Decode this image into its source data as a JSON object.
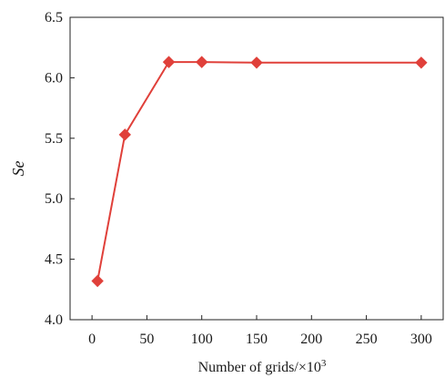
{
  "chart_data": {
    "type": "line",
    "title": "",
    "xlabel": "Number of grids/×10",
    "xlabel_superscript": "3",
    "ylabel": "Se",
    "xlim": [
      -20,
      320
    ],
    "ylim": [
      4.0,
      6.5
    ],
    "x_ticks": [
      0,
      50,
      100,
      150,
      200,
      250,
      300
    ],
    "y_ticks": [
      "4.0",
      "4.5",
      "5.0",
      "5.5",
      "6.0",
      "6.5"
    ],
    "grid": false,
    "legend": "none",
    "series": [
      {
        "color": "#e0403a",
        "marker": "diamond",
        "points": [
          {
            "x": 5,
            "y": 4.32
          },
          {
            "x": 30,
            "y": 5.53
          },
          {
            "x": 70,
            "y": 6.13
          },
          {
            "x": 100,
            "y": 6.13
          },
          {
            "x": 150,
            "y": 6.125
          },
          {
            "x": 300,
            "y": 6.125
          }
        ]
      }
    ]
  }
}
